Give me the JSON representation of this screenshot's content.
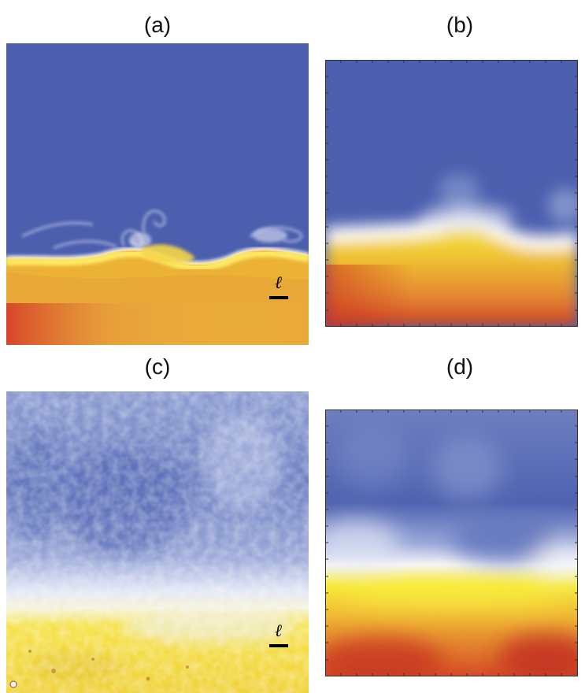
{
  "panels": [
    {
      "label": "(a)",
      "scale_label": "ℓ"
    },
    {
      "label": "(b)"
    },
    {
      "label": "(c)",
      "scale_label": "ℓ"
    },
    {
      "label": "(d)"
    }
  ],
  "colors": {
    "cold": "#4a5fae",
    "interface": "#f7f7fb",
    "warm": "#f5e020",
    "hot": "#c62a1a"
  }
}
